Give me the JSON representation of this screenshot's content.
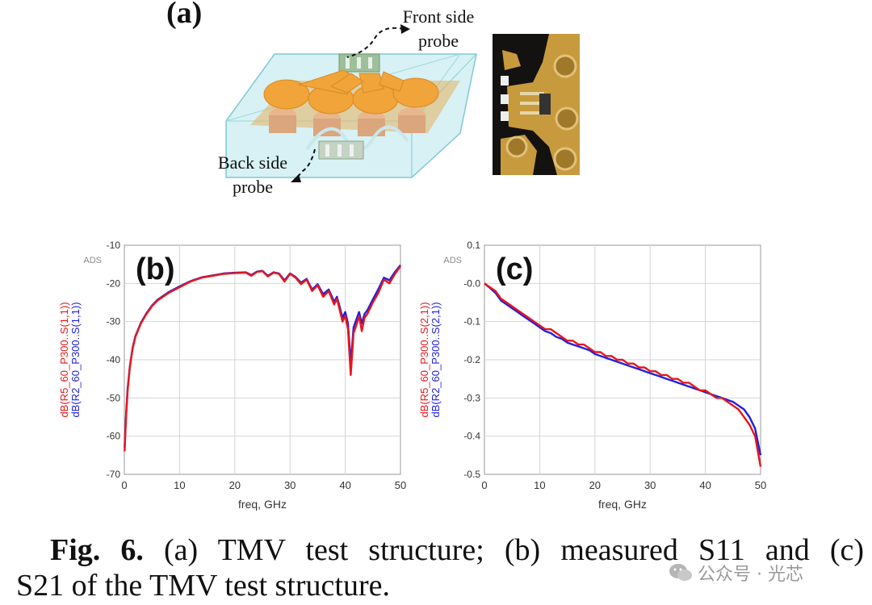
{
  "figure_a": {
    "panel_label": "(a)",
    "front_probe_line1": "Front side",
    "front_probe_line2": "probe",
    "back_probe_line1": "Back side",
    "back_probe_line2": "probe"
  },
  "chart_data": [
    {
      "type": "line",
      "panel_label": "(b)",
      "ads_tag": "ADS",
      "xlabel": "freq, GHz",
      "ylabel_red": "dB(R5_60_P300..S(1,1))",
      "ylabel_blue": "dB(R2_60_P300..S(1,1))",
      "xlim": [
        0,
        50
      ],
      "ylim": [
        -70,
        -10
      ],
      "xticks": [
        "0",
        "10",
        "20",
        "30",
        "40",
        "50"
      ],
      "yticks": [
        "-10",
        "-20",
        "-30",
        "-40",
        "-50",
        "-60",
        "-70"
      ],
      "grid": true,
      "series": [
        {
          "name": "dB(R5_60_P300..S(1,1))",
          "color": "#e8161b",
          "x": [
            0.05,
            0.3,
            0.6,
            1,
            1.5,
            2,
            3,
            4,
            5,
            6,
            8,
            10,
            12,
            14,
            16,
            18,
            20,
            22,
            23,
            24,
            25,
            26,
            27,
            28,
            29,
            30,
            31,
            32,
            33,
            34,
            35,
            36,
            37,
            38,
            38.5,
            39,
            39.5,
            40,
            40.5,
            41,
            41.5,
            42,
            42.5,
            43,
            43.5,
            44,
            45,
            46,
            47,
            48,
            49,
            50
          ],
          "values": [
            -64,
            -55,
            -48,
            -42,
            -37,
            -34,
            -30.5,
            -28,
            -26,
            -24.5,
            -22.5,
            -21,
            -19.5,
            -18.5,
            -18,
            -17.5,
            -17.3,
            -17.2,
            -18,
            -17,
            -16.8,
            -18.2,
            -17.2,
            -17.5,
            -19.5,
            -17.5,
            -18.5,
            -20.2,
            -19,
            -22,
            -20.5,
            -23.5,
            -22,
            -25.5,
            -24,
            -27,
            -30,
            -28.5,
            -32,
            -44,
            -33,
            -31,
            -28.5,
            -32.5,
            -29,
            -28,
            -25,
            -22.5,
            -19,
            -20,
            -17.5,
            -15.5
          ]
        },
        {
          "name": "dB(R2_60_P300..S(1,1))",
          "color": "#2020e0",
          "x": [
            0.05,
            0.3,
            0.6,
            1,
            1.5,
            2,
            3,
            4,
            5,
            6,
            8,
            10,
            12,
            14,
            16,
            18,
            20,
            22,
            23,
            24,
            25,
            26,
            27,
            28,
            29,
            30,
            31,
            32,
            33,
            34,
            35,
            36,
            37,
            38,
            38.5,
            39,
            39.5,
            40,
            40.5,
            41,
            41.5,
            42,
            42.5,
            43,
            43.5,
            44,
            45,
            46,
            47,
            48,
            49,
            50
          ],
          "values": [
            -63,
            -54.5,
            -47.5,
            -41.8,
            -36.8,
            -33.8,
            -30.3,
            -27.8,
            -25.8,
            -24.3,
            -22.3,
            -20.8,
            -19.4,
            -18.4,
            -17.9,
            -17.4,
            -17.2,
            -17.1,
            -17.8,
            -16.9,
            -16.7,
            -18,
            -17.1,
            -17.4,
            -19.2,
            -17.4,
            -18.3,
            -19.8,
            -18.8,
            -21.6,
            -20.2,
            -22.8,
            -21.6,
            -24.8,
            -23.5,
            -26.2,
            -29,
            -27.5,
            -30.5,
            -41,
            -31.5,
            -29.5,
            -27.5,
            -30.5,
            -28,
            -27,
            -24.2,
            -21.5,
            -18.5,
            -19.2,
            -17,
            -15.2
          ]
        }
      ]
    },
    {
      "type": "line",
      "panel_label": "(c)",
      "ads_tag": "ADS",
      "xlabel": "freq, GHz",
      "ylabel_red": "dB(R5_60_P300..S(2,1))",
      "ylabel_blue": "dB(R2_60_P300..S(2,1))",
      "xlim": [
        0,
        50
      ],
      "ylim": [
        -0.5,
        0.1
      ],
      "xticks": [
        "0",
        "10",
        "20",
        "30",
        "40",
        "50"
      ],
      "yticks": [
        "0.1",
        "-0.0",
        "-0.1",
        "-0.2",
        "-0.3",
        "-0.4",
        "-0.5"
      ],
      "grid": true,
      "series": [
        {
          "name": "dB(R5_60_P300..S(2,1))",
          "color": "#e8161b",
          "x": [
            0,
            1,
            2,
            3,
            4,
            5,
            6,
            7,
            8,
            9,
            10,
            11,
            12,
            13,
            14,
            15,
            16,
            17,
            18,
            19,
            20,
            21,
            22,
            23,
            24,
            25,
            26,
            27,
            28,
            29,
            30,
            31,
            32,
            33,
            34,
            35,
            36,
            37,
            38,
            39,
            40,
            41,
            42,
            43,
            44,
            45,
            46,
            47,
            48,
            49,
            50
          ],
          "values": [
            0.0,
            -0.01,
            -0.02,
            -0.04,
            -0.05,
            -0.06,
            -0.07,
            -0.08,
            -0.09,
            -0.1,
            -0.11,
            -0.12,
            -0.12,
            -0.13,
            -0.14,
            -0.15,
            -0.15,
            -0.16,
            -0.16,
            -0.17,
            -0.18,
            -0.18,
            -0.19,
            -0.19,
            -0.2,
            -0.2,
            -0.21,
            -0.21,
            -0.22,
            -0.22,
            -0.23,
            -0.23,
            -0.24,
            -0.24,
            -0.25,
            -0.25,
            -0.26,
            -0.26,
            -0.27,
            -0.28,
            -0.28,
            -0.29,
            -0.3,
            -0.3,
            -0.31,
            -0.32,
            -0.33,
            -0.35,
            -0.37,
            -0.4,
            -0.48
          ]
        },
        {
          "name": "dB(R2_60_P300..S(2,1))",
          "color": "#2020e0",
          "x": [
            0,
            1,
            2,
            3,
            4,
            5,
            6,
            7,
            8,
            9,
            10,
            11,
            12,
            13,
            14,
            15,
            16,
            17,
            18,
            19,
            20,
            21,
            22,
            23,
            24,
            25,
            26,
            27,
            28,
            29,
            30,
            31,
            32,
            33,
            34,
            35,
            36,
            37,
            38,
            39,
            40,
            41,
            42,
            43,
            44,
            45,
            46,
            47,
            48,
            49,
            50
          ],
          "values": [
            0.0,
            -0.012,
            -0.025,
            -0.045,
            -0.055,
            -0.065,
            -0.075,
            -0.085,
            -0.095,
            -0.105,
            -0.115,
            -0.125,
            -0.13,
            -0.14,
            -0.145,
            -0.155,
            -0.16,
            -0.165,
            -0.17,
            -0.175,
            -0.185,
            -0.19,
            -0.195,
            -0.2,
            -0.205,
            -0.21,
            -0.215,
            -0.22,
            -0.225,
            -0.23,
            -0.235,
            -0.24,
            -0.245,
            -0.25,
            -0.255,
            -0.26,
            -0.265,
            -0.27,
            -0.275,
            -0.28,
            -0.285,
            -0.29,
            -0.295,
            -0.3,
            -0.305,
            -0.31,
            -0.32,
            -0.33,
            -0.35,
            -0.38,
            -0.45
          ]
        }
      ]
    }
  ],
  "caption": {
    "fig_label": "Fig. 6.",
    "text_line1": " (a) TMV test structure; (b) measured S11 and (c)",
    "text_line2": "S21 of the TMV test structure."
  },
  "watermark": {
    "text": "公众号 · 光芯"
  }
}
